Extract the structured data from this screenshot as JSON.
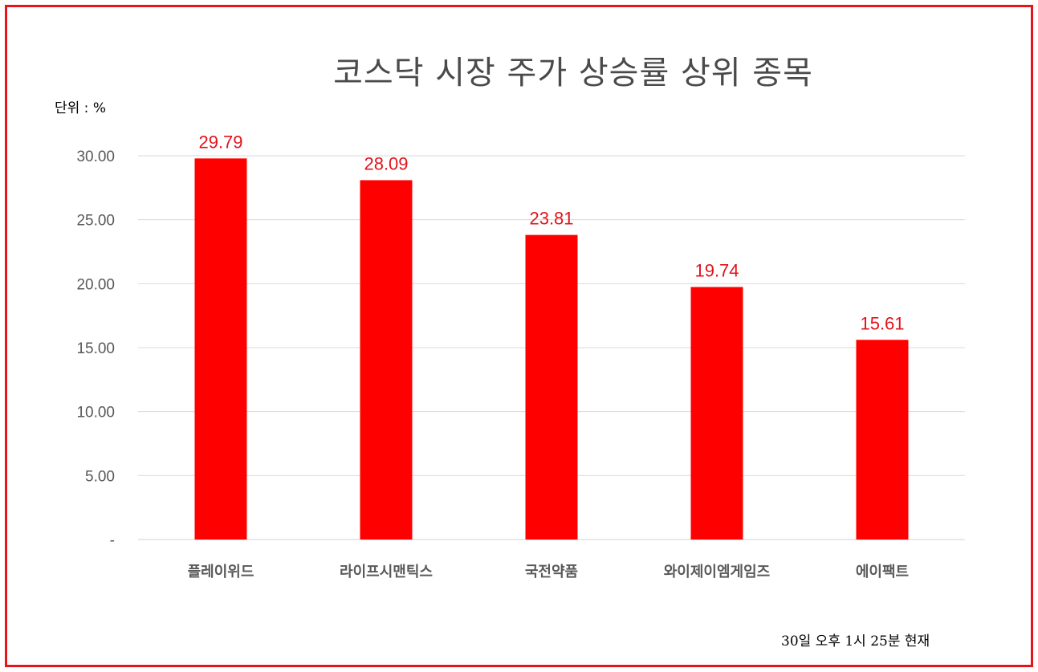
{
  "chart_data": {
    "type": "bar",
    "title": "코스닥 시장 주가 상승률 상위 종목",
    "unit_label": "단위 : %",
    "footnote": "30일  오후 1시 25분 현재",
    "categories": [
      "플레이위드",
      "라이프시맨틱스",
      "국전약품",
      "와이제이엠게임즈",
      "에이팩트"
    ],
    "values": [
      29.79,
      28.09,
      23.81,
      19.74,
      15.61
    ],
    "value_labels": [
      "29.79",
      "28.09",
      "23.81",
      "19.74",
      "15.61"
    ],
    "ylim": [
      0,
      30
    ],
    "yticks": [
      0,
      5,
      10,
      15,
      20,
      25,
      30
    ],
    "ytick_labels": [
      "-",
      "5.00",
      "10.00",
      "15.00",
      "20.00",
      "25.00",
      "30.00"
    ],
    "grid": true,
    "bar_color": "#ff0000",
    "label_color": "#e0141b",
    "border_color": "#e8141b"
  }
}
